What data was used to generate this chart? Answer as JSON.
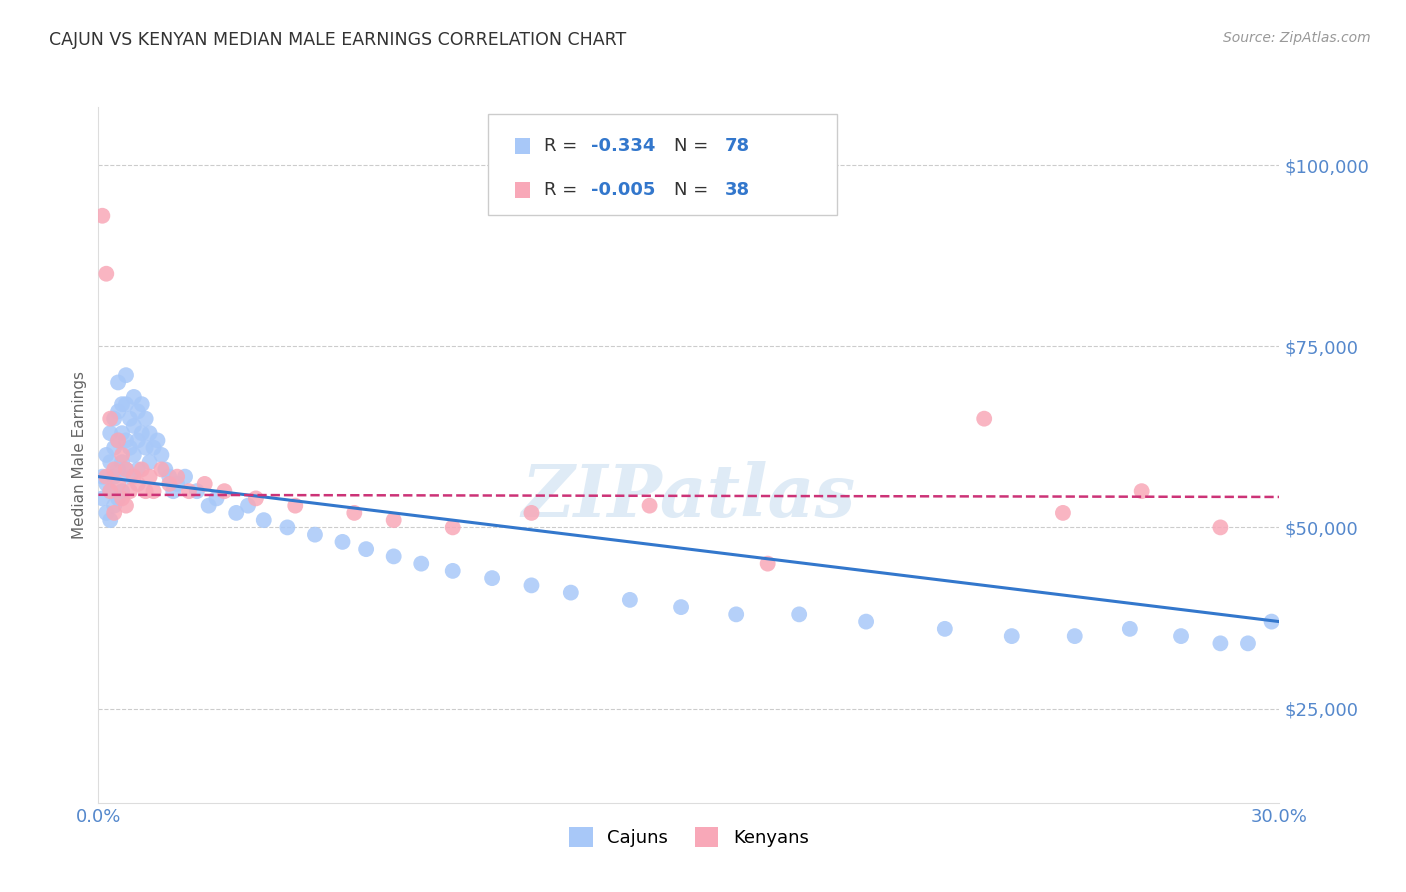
{
  "title": "CAJUN VS KENYAN MEDIAN MALE EARNINGS CORRELATION CHART",
  "source": "Source: ZipAtlas.com",
  "ylabel": "Median Male Earnings",
  "yticks": [
    25000,
    50000,
    75000,
    100000
  ],
  "ytick_labels": [
    "$25,000",
    "$50,000",
    "$75,000",
    "$100,000"
  ],
  "xmin": 0.0,
  "xmax": 0.3,
  "ymin": 12000,
  "ymax": 108000,
  "watermark": "ZIPatlas",
  "cajun_r": "-0.334",
  "cajun_n": "78",
  "kenyan_r": "-0.005",
  "kenyan_n": "38",
  "cajun_color": "#a8c8f8",
  "kenyan_color": "#f8a8b8",
  "cajun_line_color": "#3377cc",
  "kenyan_line_color": "#cc3377",
  "background": "#ffffff",
  "grid_color": "#cccccc",
  "title_color": "#333333",
  "source_color": "#999999",
  "axis_color": "#5588cc",
  "cajun_x": [
    0.001,
    0.001,
    0.002,
    0.002,
    0.002,
    0.003,
    0.003,
    0.003,
    0.003,
    0.004,
    0.004,
    0.004,
    0.004,
    0.005,
    0.005,
    0.005,
    0.005,
    0.005,
    0.006,
    0.006,
    0.006,
    0.006,
    0.007,
    0.007,
    0.007,
    0.007,
    0.008,
    0.008,
    0.008,
    0.009,
    0.009,
    0.009,
    0.01,
    0.01,
    0.01,
    0.011,
    0.011,
    0.012,
    0.012,
    0.013,
    0.013,
    0.014,
    0.015,
    0.016,
    0.017,
    0.018,
    0.019,
    0.02,
    0.022,
    0.025,
    0.028,
    0.03,
    0.035,
    0.038,
    0.042,
    0.048,
    0.055,
    0.062,
    0.068,
    0.075,
    0.082,
    0.09,
    0.1,
    0.11,
    0.12,
    0.135,
    0.148,
    0.162,
    0.178,
    0.195,
    0.215,
    0.232,
    0.248,
    0.262,
    0.275,
    0.285,
    0.292,
    0.298
  ],
  "cajun_y": [
    57000,
    54000,
    60000,
    56000,
    52000,
    63000,
    59000,
    55000,
    51000,
    65000,
    61000,
    57000,
    53000,
    70000,
    66000,
    62000,
    58000,
    54000,
    67000,
    63000,
    59000,
    55000,
    71000,
    67000,
    62000,
    58000,
    65000,
    61000,
    57000,
    68000,
    64000,
    60000,
    66000,
    62000,
    58000,
    67000,
    63000,
    65000,
    61000,
    63000,
    59000,
    61000,
    62000,
    60000,
    58000,
    57000,
    55000,
    56000,
    57000,
    55000,
    53000,
    54000,
    52000,
    53000,
    51000,
    50000,
    49000,
    48000,
    47000,
    46000,
    45000,
    44000,
    43000,
    42000,
    41000,
    40000,
    39000,
    38000,
    38000,
    37000,
    36000,
    35000,
    35000,
    36000,
    35000,
    34000,
    34000,
    37000
  ],
  "kenyan_x": [
    0.001,
    0.002,
    0.002,
    0.003,
    0.003,
    0.004,
    0.004,
    0.005,
    0.005,
    0.006,
    0.006,
    0.007,
    0.007,
    0.008,
    0.009,
    0.01,
    0.011,
    0.012,
    0.013,
    0.014,
    0.016,
    0.018,
    0.02,
    0.023,
    0.027,
    0.032,
    0.04,
    0.05,
    0.065,
    0.075,
    0.09,
    0.11,
    0.14,
    0.17,
    0.225,
    0.245,
    0.265,
    0.285
  ],
  "kenyan_y": [
    93000,
    85000,
    57000,
    65000,
    55000,
    58000,
    52000,
    62000,
    56000,
    60000,
    54000,
    58000,
    53000,
    55000,
    57000,
    56000,
    58000,
    55000,
    57000,
    55000,
    58000,
    56000,
    57000,
    55000,
    56000,
    55000,
    54000,
    53000,
    52000,
    51000,
    50000,
    52000,
    53000,
    45000,
    65000,
    52000,
    55000,
    50000
  ]
}
